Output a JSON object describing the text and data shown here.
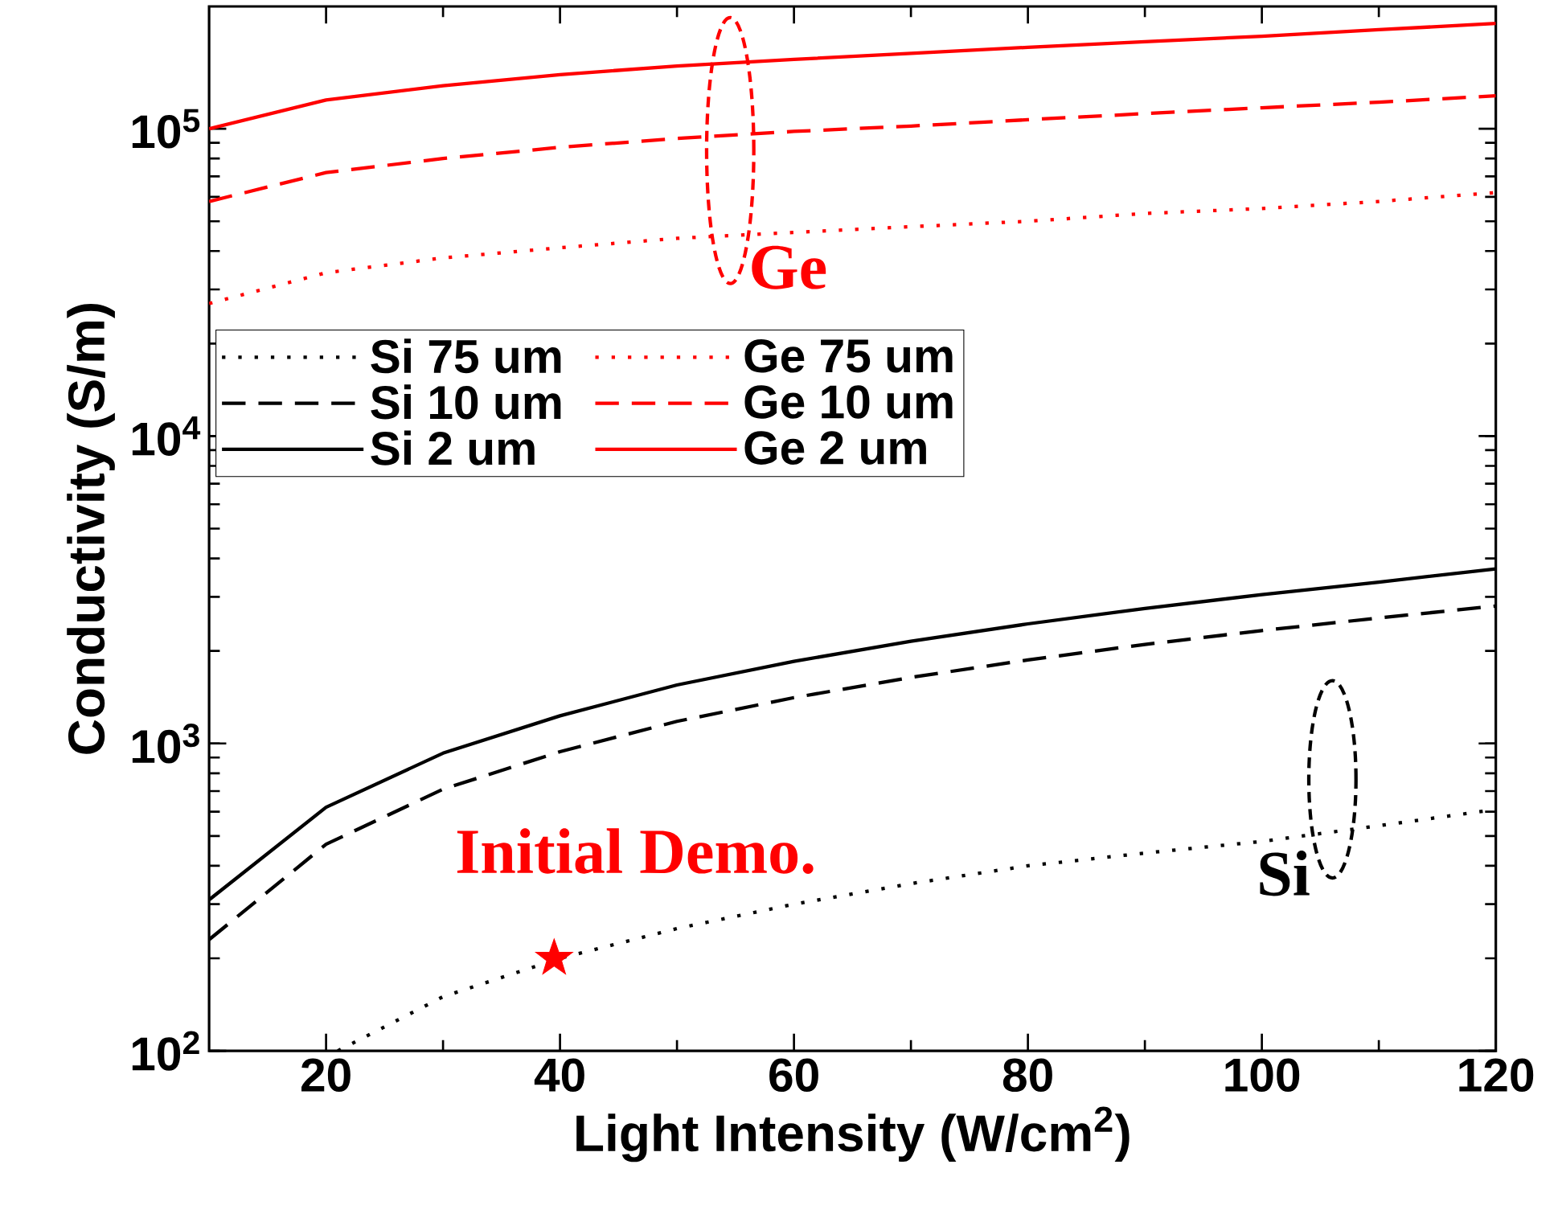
{
  "chart_data": {
    "type": "line",
    "xlabel": "Light Intensity (W/cm$^{2}$)",
    "ylabel": "Conductivity (S/m)",
    "x": [
      10,
      20,
      30,
      40,
      50,
      60,
      70,
      80,
      90,
      100,
      110,
      120
    ],
    "xlim": [
      10,
      120
    ],
    "xticks": [
      20,
      40,
      60,
      80,
      100,
      120
    ],
    "ylim": [
      100,
      250000
    ],
    "yticks": [
      {
        "value": 100,
        "label": "10$^{2}$"
      },
      {
        "value": 1000,
        "label": "10$^{3}$"
      },
      {
        "value": 10000,
        "label": "10$^{4}$"
      },
      {
        "value": 100000,
        "label": "10$^{5}$"
      }
    ],
    "log": "y",
    "grid": false,
    "legend": "left",
    "series": [
      {
        "name": "Si 75 um",
        "color": "#000000",
        "line_style": "dotted",
        "x": [
          21,
          30,
          40,
          50,
          60,
          70,
          80,
          90,
          100,
          110,
          120
        ],
        "values": [
          100,
          150,
          200,
          250,
          300,
          350,
          400,
          440,
          480,
          540,
          610
        ]
      },
      {
        "name": "Ge 75 um",
        "color": "#ff0000",
        "line_style": "dotted",
        "values": [
          27000,
          34000,
          38000,
          41000,
          44000,
          46000,
          48000,
          50000,
          53000,
          55000,
          58000,
          62000
        ]
      },
      {
        "name": "Si 10 um",
        "color": "#000000",
        "line_style": "dashed",
        "values": [
          230,
          470,
          710,
          940,
          1180,
          1410,
          1640,
          1870,
          2100,
          2330,
          2560,
          2800
        ]
      },
      {
        "name": "Ge 10 um",
        "color": "#ff0000",
        "line_style": "dashed",
        "values": [
          58000,
          72000,
          80000,
          87000,
          93000,
          98000,
          102000,
          107000,
          112000,
          117000,
          122000,
          128000
        ]
      },
      {
        "name": "Si 2 um",
        "color": "#000000",
        "line_style": "solid",
        "values": [
          310,
          620,
          930,
          1230,
          1550,
          1850,
          2150,
          2450,
          2750,
          3050,
          3350,
          3700
        ]
      },
      {
        "name": "Ge 2 um",
        "color": "#ff0000",
        "line_style": "solid",
        "values": [
          100000,
          124000,
          138000,
          150000,
          160000,
          168000,
          176000,
          184000,
          192000,
          200000,
          210000,
          220000
        ]
      },
      {
        "type": "scatter",
        "marker": "star",
        "color": "#ff0000",
        "x": [
          39.5
        ],
        "values": [
          200
        ]
      }
    ],
    "annotations": [
      "Ge",
      "Si",
      {
        "text": "Initial Demo.",
        "x": 39.5,
        "y": 200
      }
    ]
  }
}
